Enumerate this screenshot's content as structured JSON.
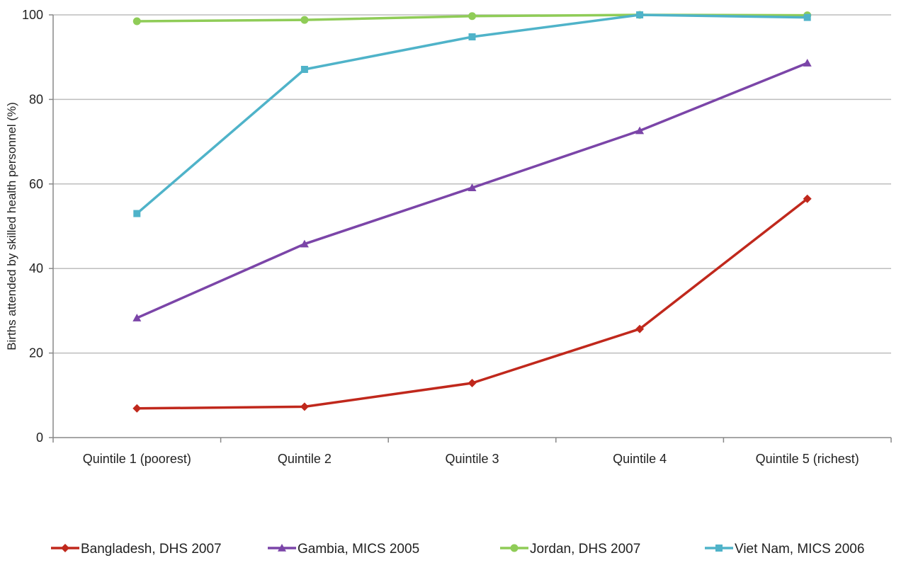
{
  "chart_data": {
    "type": "line",
    "title": "",
    "xlabel": "",
    "ylabel": "Births attended by skilled health personnel (%)",
    "categories": [
      "Quintile 1 (poorest)",
      "Quintile 2",
      "Quintile 3",
      "Quintile 4",
      "Quintile 5 (richest)"
    ],
    "ylim": [
      0,
      100
    ],
    "yticks": [
      0,
      20,
      40,
      60,
      80,
      100
    ],
    "grid": true,
    "legend_position": "bottom",
    "series": [
      {
        "name": "Bangladesh, DHS 2007",
        "color": "#c0281c",
        "marker": "diamond",
        "values": [
          6.9,
          7.3,
          12.9,
          25.7,
          56.5
        ]
      },
      {
        "name": "Gambia, MICS 2005",
        "color": "#7b45a8",
        "marker": "triangle",
        "values": [
          28.3,
          45.8,
          59.1,
          72.6,
          88.6
        ]
      },
      {
        "name": "Jordan, DHS 2007",
        "color": "#8fcc57",
        "marker": "circle",
        "values": [
          98.5,
          98.8,
          99.7,
          100,
          99.9
        ]
      },
      {
        "name": "Viet Nam, MICS 2006",
        "color": "#4fb3c9",
        "marker": "square",
        "values": [
          53.0,
          87.1,
          94.8,
          100,
          99.4
        ]
      }
    ]
  }
}
